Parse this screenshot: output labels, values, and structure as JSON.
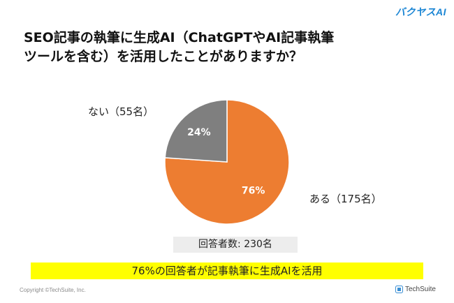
{
  "brand_top": "バクヤスAI",
  "title": "SEO記事の執筆に生成AI（ChatGPTやAI記事執筆\nツールを含む）を活用したことがありますか？",
  "chart_data": {
    "type": "pie",
    "title": "SEO記事の執筆に生成AI（ChatGPTやAI記事執筆ツールを含む）を活用したことがありますか？",
    "categories": [
      "ある（175名）",
      "ない（55名）"
    ],
    "values": [
      175,
      55
    ],
    "percent_labels": [
      "76%",
      "24%"
    ],
    "colors": [
      "#ed7d31",
      "#7f7f7f"
    ],
    "start_angle": "12 o'clock",
    "direction": "clockwise"
  },
  "respondents": "回答者数: 230名",
  "highlight": "76%の回答者が記事執筆に生成AIを活用",
  "copyright": "Copyright ©TechSuite, Inc.",
  "footer_brand": "TechSuite",
  "footer_icon": "techsuite-logo-icon"
}
